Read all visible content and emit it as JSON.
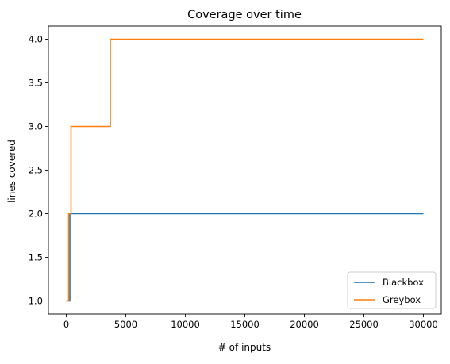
{
  "chart_data": {
    "type": "line",
    "title": "Coverage over time",
    "xlabel": "# of inputs",
    "ylabel": "lines covered",
    "xlim": [
      -1500,
      31500
    ],
    "ylim": [
      0.85,
      4.15
    ],
    "xticks": [
      0,
      5000,
      10000,
      15000,
      20000,
      25000,
      30000
    ],
    "xtick_labels": [
      "0",
      "5000",
      "10000",
      "15000",
      "20000",
      "25000",
      "30000"
    ],
    "yticks": [
      1.0,
      1.5,
      2.0,
      2.5,
      3.0,
      3.5,
      4.0
    ],
    "ytick_labels": [
      "1.0",
      "1.5",
      "2.0",
      "2.5",
      "3.0",
      "3.5",
      "4.0"
    ],
    "grid": false,
    "legend_position": "lower right",
    "step": true,
    "series": [
      {
        "name": "Blackbox",
        "color": "#1f77b4",
        "points": [
          [
            0,
            1
          ],
          [
            300,
            1
          ],
          [
            300,
            2
          ],
          [
            30000,
            2
          ]
        ]
      },
      {
        "name": "Greybox",
        "color": "#ff7f0e",
        "points": [
          [
            0,
            1
          ],
          [
            200,
            1
          ],
          [
            200,
            2
          ],
          [
            400,
            2
          ],
          [
            400,
            3
          ],
          [
            3700,
            3
          ],
          [
            3700,
            4
          ],
          [
            30000,
            4
          ]
        ]
      }
    ]
  }
}
